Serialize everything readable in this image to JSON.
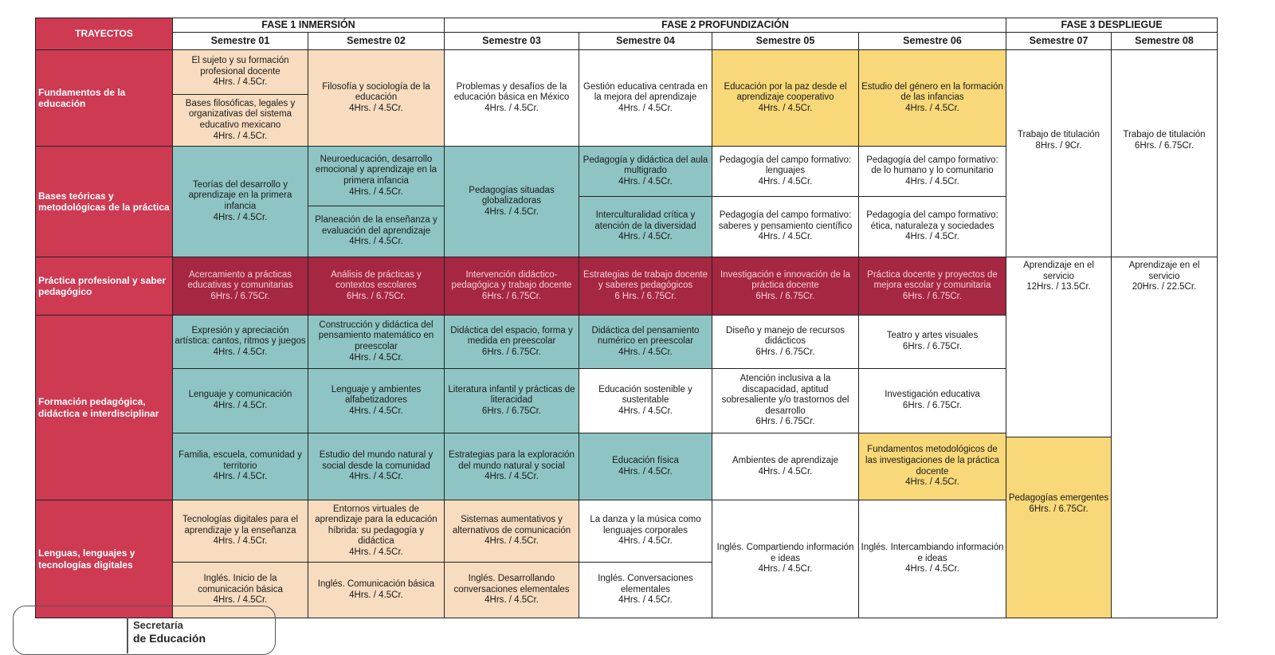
{
  "header": {
    "corner": "TRAYECTOS",
    "phases": [
      "FASE 1 INMERSIÓN",
      "FASE 2 PROFUNDIZACIÓN",
      "FASE 3 DESPLIEGUE"
    ],
    "semesters": [
      "Semestre 01",
      "Semestre 02",
      "Semestre 03",
      "Semestre 04",
      "Semestre 05",
      "Semestre 06",
      "Semestre 07",
      "Semestre 08"
    ]
  },
  "trayectos": [
    "Fundamentos de la educación",
    "Bases teóricas y metodológicas de la práctica",
    "Práctica profesional y saber pedagógico",
    "Formación pedagógica, didáctica e interdisciplinar",
    "Lenguas, lenguajes y tecnologías digitales"
  ],
  "cells": [
    {
      "title": "El sujeto y su formación profesional docente",
      "hours": "4Hrs. / 4.5Cr."
    },
    {
      "title": "Bases filosóficas, legales y organizativas del sistema educativo mexicano",
      "hours": "4Hrs. / 4.5Cr."
    },
    {
      "title": "Filosofía y sociología de la educación",
      "hours": "4Hrs. / 4.5Cr."
    },
    {
      "title": "Problemas y desafíos de la educación básica en México",
      "hours": "4Hrs. / 4.5Cr."
    },
    {
      "title": "Gestión educativa centrada en la mejora del aprendizaje",
      "hours": "4Hrs. / 4.5Cr."
    },
    {
      "title": "Educación por la paz desde el aprendizaje cooperativo",
      "hours": "4Hrs. / 4.5Cr."
    },
    {
      "title": "Estudio del género en la formación de las infancias",
      "hours": "4Hrs. / 4.5Cr."
    },
    {
      "title": "Trabajo de titulación",
      "hours": "8Hrs. /  9Cr."
    },
    {
      "title": "Trabajo de titulación",
      "hours": "6Hrs. / 6.75Cr."
    },
    {
      "title": "Teorías del desarrollo y aprendizaje en la primera infancia",
      "hours": "4Hrs. / 4.5Cr."
    },
    {
      "title": "Neuroeducación, desarrollo emocional y aprendizaje en la primera infancia",
      "hours": "4Hrs. / 4.5Cr."
    },
    {
      "title": "Planeación de la enseñanza y evaluación del aprendizaje",
      "hours": "4Hrs. / 4.5Cr."
    },
    {
      "title": "Pedagogías situadas globalizadoras",
      "hours": "4Hrs. / 4.5Cr."
    },
    {
      "title": "Pedagogía y didáctica del aula multigrado",
      "hours": "4Hrs. / 4.5Cr."
    },
    {
      "title": "Interculturalidad crítica y atención de la diversidad",
      "hours": "4Hrs. / 4.5Cr."
    },
    {
      "title": "Pedagogía del campo formativo: lenguajes",
      "hours": "4Hrs. / 4.5Cr."
    },
    {
      "title": "Pedagogía del campo formativo: saberes y pensamiento científico",
      "hours": "4Hrs. / 4.5Cr."
    },
    {
      "title": "Pedagogía del campo formativo: de lo humano y lo comunitario",
      "hours": "4Hrs. / 4.5Cr."
    },
    {
      "title": "Pedagogía del campo formativo: ética, naturaleza y sociedades",
      "hours": "4Hrs. / 4.5Cr."
    },
    {
      "title": "Acercamiento a prácticas educativas y comunitarias",
      "hours": "6Hrs. / 6.75Cr."
    },
    {
      "title": "Análisis de prácticas y contextos escolares",
      "hours": "6Hrs. / 6.75Cr."
    },
    {
      "title": "Intervención didáctico-pedagógica y trabajo docente",
      "hours": "6Hrs. / 6.75Cr."
    },
    {
      "title": "Estrategias de trabajo docente y saberes pedagógicos",
      "hours": "6 Hrs. / 6.75Cr."
    },
    {
      "title": "Investigación e innovación de la práctica docente",
      "hours": "6Hrs. / 6.75Cr."
    },
    {
      "title": "Práctica docente y proyectos de mejora escolar y comunitaria",
      "hours": "6Hrs. / 6.75Cr."
    },
    {
      "title": "Aprendizaje en el servicio",
      "hours": "12Hrs. / 13.5Cr."
    },
    {
      "title": "Aprendizaje en el servicio",
      "hours": "20Hrs. / 22.5Cr."
    },
    {
      "title": "Expresión y apreciación artística: cantos, ritmos y juegos",
      "hours": "4Hrs. / 4.5Cr."
    },
    {
      "title": "Lenguaje y comunicación",
      "hours": "4Hrs. / 4.5Cr."
    },
    {
      "title": "Familia, escuela, comunidad y territorio",
      "hours": "4Hrs. / 4.5Cr."
    },
    {
      "title": "Construcción y didáctica del pensamiento matemático en preescolar",
      "hours": "4Hrs. / 4.5Cr."
    },
    {
      "title": "Lenguaje y ambientes alfabetizadores",
      "hours": "4Hrs. / 4.5Cr."
    },
    {
      "title": "Estudio del mundo natural y social desde la comunidad",
      "hours": "4Hrs. / 4.5Cr."
    },
    {
      "title": "Didáctica del espacio, forma y medida en preescolar",
      "hours": "6Hrs. / 6.75Cr."
    },
    {
      "title": "Literatura infantil y prácticas de literacidad",
      "hours": "6Hrs. / 6.75Cr."
    },
    {
      "title": "Estrategias para la exploración del mundo natural y social",
      "hours": "4Hrs. / 4.5Cr."
    },
    {
      "title": "Didáctica del pensamiento numérico en preescolar",
      "hours": "4Hrs. / 4.5Cr."
    },
    {
      "title": "Educación sostenible y sustentable",
      "hours": "4Hrs. / 4.5Cr."
    },
    {
      "title": "Educación física",
      "hours": "4Hrs. / 4.5Cr."
    },
    {
      "title": "Diseño y manejo de recursos didácticos",
      "hours": "6Hrs. / 6.75Cr."
    },
    {
      "title": "Atención inclusiva a la discapacidad, aptitud sobresaliente y/o trastornos del desarrollo",
      "hours": "6Hrs. / 6.75Cr."
    },
    {
      "title": "Ambientes de aprendizaje",
      "hours": "4Hrs. / 4.5Cr."
    },
    {
      "title": "Teatro y artes visuales",
      "hours": "6Hrs. / 6.75Cr."
    },
    {
      "title": "Investigación educativa",
      "hours": "6Hrs. / 6.75Cr."
    },
    {
      "title": "Fundamentos metodológicos de las investigaciones de la práctica docente",
      "hours": "4Hrs. / 4.5Cr."
    },
    {
      "title": "Pedagogías emergentes",
      "hours": "6Hrs. / 6.75Cr."
    },
    {
      "title": "Tecnologías digitales para el aprendizaje y la enseñanza",
      "hours": "4Hrs. / 4.5Cr."
    },
    {
      "title": "Inglés. Inicio de la comunicación básica",
      "hours": "4Hrs. / 4.5Cr."
    },
    {
      "title": "Entornos virtuales de aprendizaje para la educación híbrida: su pedagogía y didáctica",
      "hours": "4Hrs. / 4.5Cr."
    },
    {
      "title": "Inglés. Comunicación básica",
      "hours": "4Hrs. / 4.5Cr."
    },
    {
      "title": "Sistemas aumentativos y alternativos de comunicación",
      "hours": "4Hrs. / 4.5Cr."
    },
    {
      "title": "Inglés. Desarrollando conversaciones elementales",
      "hours": "4Hrs. / 4.5Cr."
    },
    {
      "title": "La danza y la música como lenguajes corporales",
      "hours": "4Hrs. / 4.5Cr."
    },
    {
      "title": "Inglés. Conversaciones elementales",
      "hours": "4Hrs. / 4.5Cr."
    },
    {
      "title": "Inglés. Compartiendo información e ideas",
      "hours": "4Hrs. / 4.5Cr."
    },
    {
      "title": "Inglés. Intercambiando información e ideas",
      "hours": "4Hrs. / 4.5Cr."
    }
  ],
  "footer": {
    "line1": "Secretaría",
    "line2": "de Educación"
  }
}
